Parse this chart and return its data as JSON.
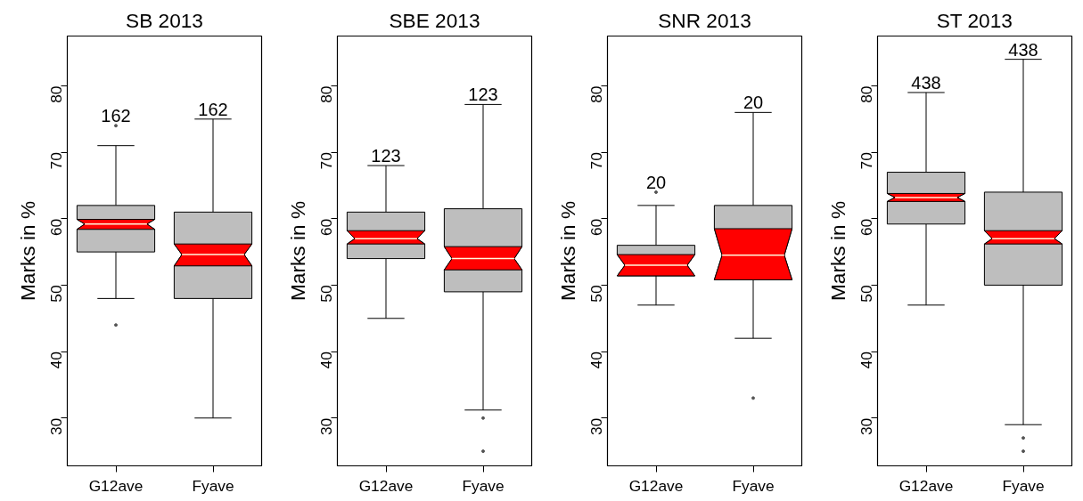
{
  "chart_data": [
    {
      "type": "box",
      "title": "SB 2013",
      "ylabel": "Marks in %",
      "categories": [
        "G12ave",
        "Fyave"
      ],
      "ylim": [
        22.8,
        87.5
      ],
      "yticks": [
        30,
        40,
        50,
        60,
        70,
        80
      ],
      "grid": false,
      "color": "#bebebe",
      "boxes": [
        {
          "low": 48,
          "q1": 55,
          "median": 59.2,
          "q3": 62,
          "high": 71,
          "outliers": [
            44,
            74
          ]
        },
        {
          "low": 30,
          "q1": 48,
          "median": 54.6,
          "q3": 61,
          "high": 75
        }
      ],
      "series": [
        {
          "type": "bar",
          "color": "#ff0000",
          "base": [
            58.4,
            52.9
          ],
          "values": [
            1.5,
            3.3
          ]
        }
      ],
      "annotations": [
        "162",
        "162"
      ]
    },
    {
      "type": "box",
      "title": "SBE 2013",
      "ylabel": "Marks in %",
      "categories": [
        "G12ave",
        "Fyave"
      ],
      "ylim": [
        22.8,
        87.5
      ],
      "yticks": [
        30,
        40,
        50,
        60,
        70,
        80
      ],
      "grid": false,
      "color": "#bebebe",
      "boxes": [
        {
          "low": 45,
          "q1": 54,
          "median": 57,
          "q3": 61,
          "high": 68
        },
        {
          "low": 31.2,
          "q1": 49,
          "median": 54,
          "q3": 61.5,
          "high": 77.2,
          "outliers": [
            30,
            25
          ]
        }
      ],
      "series": [
        {
          "type": "bar",
          "color": "#ff0000",
          "base": [
            56.2,
            52.3
          ],
          "values": [
            2,
            3.5
          ]
        }
      ],
      "annotations": [
        "123",
        "123"
      ]
    },
    {
      "type": "box",
      "title": "SNR 2013",
      "ylabel": "Marks in %",
      "categories": [
        "G12ave",
        "Fyave"
      ],
      "ylim": [
        22.8,
        87.5
      ],
      "yticks": [
        30,
        40,
        50,
        60,
        70,
        80
      ],
      "grid": false,
      "color": "#bebebe",
      "boxes": [
        {
          "low": 47,
          "q1": 51.4,
          "median": 53,
          "q3": 56,
          "high": 62,
          "outliers": [
            64
          ]
        },
        {
          "low": 42,
          "q1": 50.8,
          "median": 54.5,
          "q3": 62,
          "high": 76,
          "outliers": [
            33
          ]
        }
      ],
      "series": [
        {
          "type": "bar",
          "color": "#ff0000",
          "base": [
            51.4,
            50.8
          ],
          "values": [
            3.2,
            7.7
          ]
        }
      ],
      "annotations": [
        "20",
        "20"
      ]
    },
    {
      "type": "box",
      "title": "ST 2013",
      "ylabel": "Marks in %",
      "categories": [
        "G12ave",
        "Fyave"
      ],
      "ylim": [
        22.8,
        87.5
      ],
      "yticks": [
        30,
        40,
        50,
        60,
        70,
        80
      ],
      "grid": false,
      "color": "#bebebe",
      "boxes": [
        {
          "low": 47,
          "q1": 59.2,
          "median": 63.2,
          "q3": 67,
          "high": 79
        },
        {
          "low": 29,
          "q1": 50,
          "median": 57,
          "q3": 64,
          "high": 84,
          "outliers": [
            27,
            25
          ]
        }
      ],
      "series": [
        {
          "type": "bar",
          "color": "#ff0000",
          "base": [
            62.6,
            56.2
          ],
          "values": [
            1.2,
            2
          ]
        }
      ],
      "annotations": [
        "438",
        "438"
      ]
    }
  ]
}
